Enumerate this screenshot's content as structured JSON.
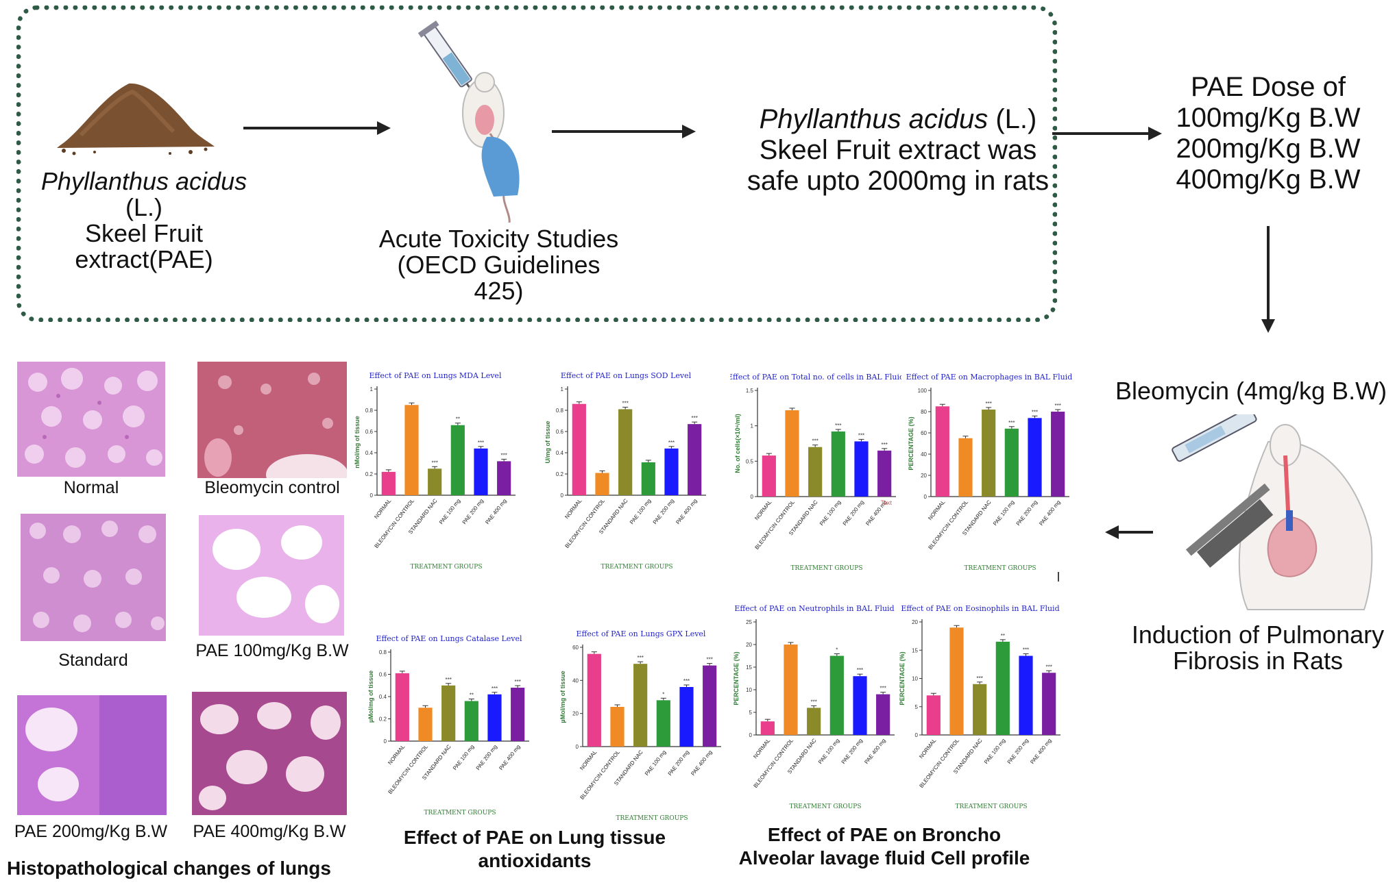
{
  "top": {
    "source_line1_italic": "Phyllanthus acidus",
    "source_line1_rest": " (L.)",
    "source_line2": "Skeel Fruit extract(PAE)",
    "toxicity_line1": "Acute Toxicity Studies",
    "toxicity_line2": "(OECD Guidelines 425)",
    "safe_line1_italic": "Phyllanthus acidus",
    "safe_line1_rest": " (L.)",
    "safe_line2": "Skeel Fruit extract was",
    "safe_line3": "safe upto 2000mg in rats"
  },
  "doses": {
    "title": "PAE Dose of",
    "items": [
      "100mg/Kg B.W",
      "200mg/Kg B.W",
      "400mg/Kg B.W"
    ]
  },
  "induction": {
    "agent": "Bleomycin (4mg/kg B.W)",
    "line1": "Induction of Pulmonary",
    "line2": "Fibrosis in Rats"
  },
  "histo": {
    "labels": [
      "Normal",
      "Bleomycin control",
      "Standard",
      "PAE 100mg/Kg B.W",
      "PAE 200mg/Kg B.W",
      "PAE 400mg/Kg B.W"
    ],
    "section_title": "Histopathological changes of lungs"
  },
  "sections": {
    "antioxidants_line1": "Effect of PAE on Lung tissue",
    "antioxidants_line2": "antioxidants",
    "bal_line1": "Effect of PAE on Broncho",
    "bal_line2": "Alveolar lavage fluid Cell profile"
  },
  "colors": {
    "arrow": "#222222",
    "box_border": "#2e5a46",
    "title_blue": "#2222cc",
    "axis_green": "#2e7d32",
    "bars": [
      "#e83e8c",
      "#f08a24",
      "#8a8a2a",
      "#2e9b3a",
      "#1a1aff",
      "#7a1fa2"
    ]
  },
  "icons": [
    "soil-pile-icon",
    "syringe-mouse-icon",
    "rat-intubation-icon"
  ],
  "chart_data": [
    {
      "type": "bar",
      "title": "Effect of PAE on Lungs MDA Level",
      "ylabel": "nMol/mg of tissue",
      "xlabel": "TREATMENT GROUPS",
      "categories": [
        "NORMAL",
        "BLEOMYCIN CONTROL",
        "STANDARD NAC",
        "PAE 100 mg",
        "PAE 200 mg",
        "PAE 400 mg"
      ],
      "values": [
        0.22,
        0.85,
        0.25,
        0.66,
        0.44,
        0.32
      ],
      "sig": [
        "",
        "",
        "***",
        "**",
        "***",
        "***"
      ],
      "ylim": [
        0,
        1.0
      ],
      "ticks": [
        0,
        0.2,
        0.4,
        0.6,
        0.8,
        1.0
      ]
    },
    {
      "type": "bar",
      "title": "Effect of PAE on Lungs SOD Level",
      "ylabel": "U/mg of tissue",
      "xlabel": "TREATMENT GROUPS",
      "categories": [
        "NORMAL",
        "BLEOMYCIN CONTROL",
        "STANDARD NAC",
        "PAE 100 mg",
        "PAE 200 mg",
        "PAE 400 mg"
      ],
      "values": [
        0.86,
        0.21,
        0.81,
        0.31,
        0.44,
        0.67
      ],
      "sig": [
        "",
        "",
        "***",
        "",
        "***",
        "***"
      ],
      "ylim": [
        0,
        1.0
      ],
      "ticks": [
        0,
        0.2,
        0.4,
        0.6,
        0.8,
        1.0
      ]
    },
    {
      "type": "bar",
      "title": "Effect of PAE on Total no. of cells in BAL Fluid",
      "ylabel": "No. of cells(×10⁶/ml)",
      "xlabel": "TREATMENT GROUPS",
      "extra_text": "Text",
      "categories": [
        "NORMAL",
        "BLEOMYCIN CONTROL",
        "STANDARD NAC",
        "PAE 100 mg",
        "PAE 200 mg",
        "PAE 400 mg"
      ],
      "values": [
        0.58,
        1.22,
        0.7,
        0.92,
        0.78,
        0.65
      ],
      "sig": [
        "",
        "",
        "***",
        "***",
        "***",
        "***"
      ],
      "ylim": [
        0,
        1.5
      ],
      "ticks": [
        0,
        0.5,
        1.0,
        1.5
      ]
    },
    {
      "type": "bar",
      "title": "Effect of PAE on Macrophages in BAL Fluid",
      "ylabel": "PERCENTAGE (%)",
      "xlabel": "TREATMENT GROUPS",
      "categories": [
        "NORMAL",
        "BLEOMYCIN CONTROL",
        "STANDARD NAC",
        "PAE 100 mg",
        "PAE 200 mg",
        "PAE 400 mg"
      ],
      "values": [
        85,
        55,
        82,
        64,
        74,
        80
      ],
      "sig": [
        "",
        "",
        "***",
        "***",
        "***",
        "***"
      ],
      "ylim": [
        0,
        100
      ],
      "ticks": [
        0,
        20,
        40,
        60,
        80,
        100
      ]
    },
    {
      "type": "bar",
      "title": "Effect of PAE on Lungs Catalase Level",
      "ylabel": "µMol/mg of tissue",
      "xlabel": "TREATMENT GROUPS",
      "categories": [
        "NORMAL",
        "BLEOMYCIN CONTROL",
        "STANDARD NAC",
        "PAE 100 mg",
        "PAE 200 mg",
        "PAE 400 mg"
      ],
      "values": [
        0.61,
        0.3,
        0.5,
        0.36,
        0.42,
        0.48
      ],
      "sig": [
        "",
        "",
        "***",
        "**",
        "***",
        "***"
      ],
      "ylim": [
        0,
        0.8
      ],
      "ticks": [
        0,
        0.2,
        0.4,
        0.6,
        0.8
      ]
    },
    {
      "type": "bar",
      "title": "Effect of PAE on Lungs GPX Level",
      "ylabel": "µMol/mg of tissue",
      "xlabel": "TREATMENT GROUPS",
      "categories": [
        "NORMAL",
        "BLEOMYCIN CONTROL",
        "STANDARD NAC",
        "PAE 100 mg",
        "PAE 200 mg",
        "PAE 400 mg"
      ],
      "values": [
        56,
        24,
        50,
        28,
        36,
        49
      ],
      "sig": [
        "",
        "",
        "***",
        "*",
        "***",
        "***"
      ],
      "ylim": [
        0,
        60
      ],
      "ticks": [
        0,
        20,
        40,
        60
      ]
    },
    {
      "type": "bar",
      "title": "Effect of PAE on Neutrophils in BAL Fluid",
      "ylabel": "PERCENTAGE (%)",
      "xlabel": "TREATMENT GROUPS",
      "categories": [
        "NORMAL",
        "BLEOMYCIN CONTROL",
        "STANDARD NAC",
        "PAE 100 mg",
        "PAE 200 mg",
        "PAE 400 mg"
      ],
      "values": [
        3,
        20,
        6,
        17.5,
        13,
        9
      ],
      "sig": [
        "",
        "",
        "***",
        "*",
        "***",
        "***"
      ],
      "ylim": [
        0,
        25
      ],
      "ticks": [
        0,
        5,
        10,
        15,
        20,
        25
      ]
    },
    {
      "type": "bar",
      "title": "Effect of PAE on Eosinophils in BAL Fluid",
      "ylabel": "PERCENTAGE (%)",
      "xlabel": "TREATMENT GROUPS",
      "categories": [
        "NORMAL",
        "BLEOMYCIN CONTROL",
        "STANDARD NAC",
        "PAE 100 mg",
        "PAE 200 mg",
        "PAE 400 mg"
      ],
      "values": [
        7,
        19,
        9,
        16.5,
        14,
        11
      ],
      "sig": [
        "",
        "",
        "***",
        "**",
        "***",
        "***"
      ],
      "ylim": [
        0,
        20
      ],
      "ticks": [
        0,
        5,
        10,
        15,
        20
      ]
    }
  ]
}
